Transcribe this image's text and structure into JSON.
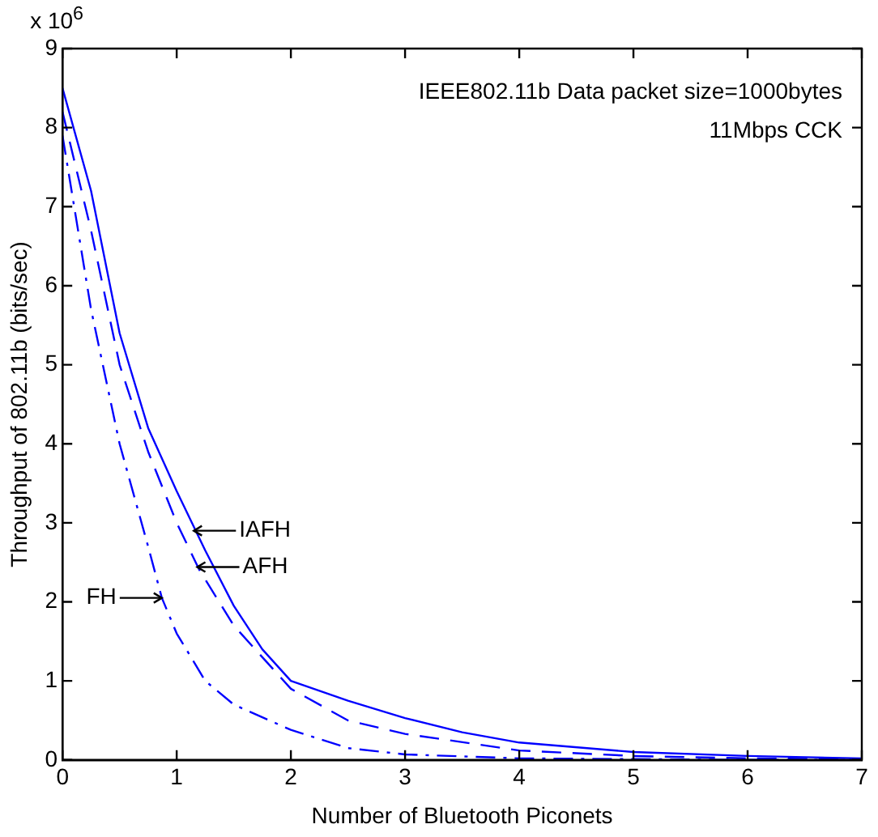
{
  "chart_data": {
    "type": "line",
    "xlabel": "Number of Bluetooth Piconets",
    "ylabel": "Throughput of 802.11b (bits/sec)",
    "xlim": [
      0,
      7
    ],
    "xticks": [
      0,
      1,
      2,
      3,
      4,
      5,
      6,
      7
    ],
    "ylim": [
      0,
      9
    ],
    "yticks": [
      0,
      1,
      2,
      3,
      4,
      5,
      6,
      7,
      8,
      9
    ],
    "grid": false,
    "legend": false,
    "marker": "none",
    "series": [
      {
        "color": "#0000ff",
        "line_style": "solid",
        "x": [
          0,
          0.25,
          0.5,
          0.75,
          1,
          1.25,
          1.5,
          1.75,
          2,
          2.5,
          3,
          3.5,
          4,
          5,
          6,
          7
        ],
        "values": [
          8.5,
          7.2,
          5.4,
          4.2,
          3.4,
          2.65,
          1.95,
          1.4,
          1.0,
          0.75,
          0.53,
          0.35,
          0.22,
          0.1,
          0.05,
          0.02
        ]
      },
      {
        "color": "#0000ff",
        "line_style": "dashed",
        "x": [
          0,
          0.25,
          0.5,
          0.75,
          1,
          1.2,
          1.5,
          2,
          2.5,
          3,
          4,
          5,
          6,
          7
        ],
        "values": [
          8.2,
          6.7,
          5.0,
          3.9,
          3.0,
          2.4,
          1.7,
          0.9,
          0.5,
          0.33,
          0.12,
          0.05,
          0.02,
          0.01
        ]
      },
      {
        "color": "#0000ff",
        "line_style": "dashdot",
        "x": [
          0,
          0.25,
          0.5,
          0.75,
          0.87,
          1,
          1.25,
          1.5,
          2,
          2.5,
          3,
          4,
          5,
          6,
          7
        ],
        "values": [
          7.9,
          5.7,
          4.0,
          2.7,
          2.05,
          1.6,
          1.0,
          0.7,
          0.38,
          0.15,
          0.07,
          0.02,
          0.01,
          0,
          0
        ]
      }
    ],
    "annotations": [
      "x 10$^{6}$",
      "IEEE802.11b Data packet size=1000bytes",
      "11Mbps CCK",
      {
        "text": "IAFH",
        "x": 1.15,
        "y": 2.9
      },
      {
        "text": "AFH",
        "x": 1.18,
        "y": 2.44
      },
      {
        "text": "FH",
        "x": 0.87,
        "y": 2.05
      }
    ]
  }
}
